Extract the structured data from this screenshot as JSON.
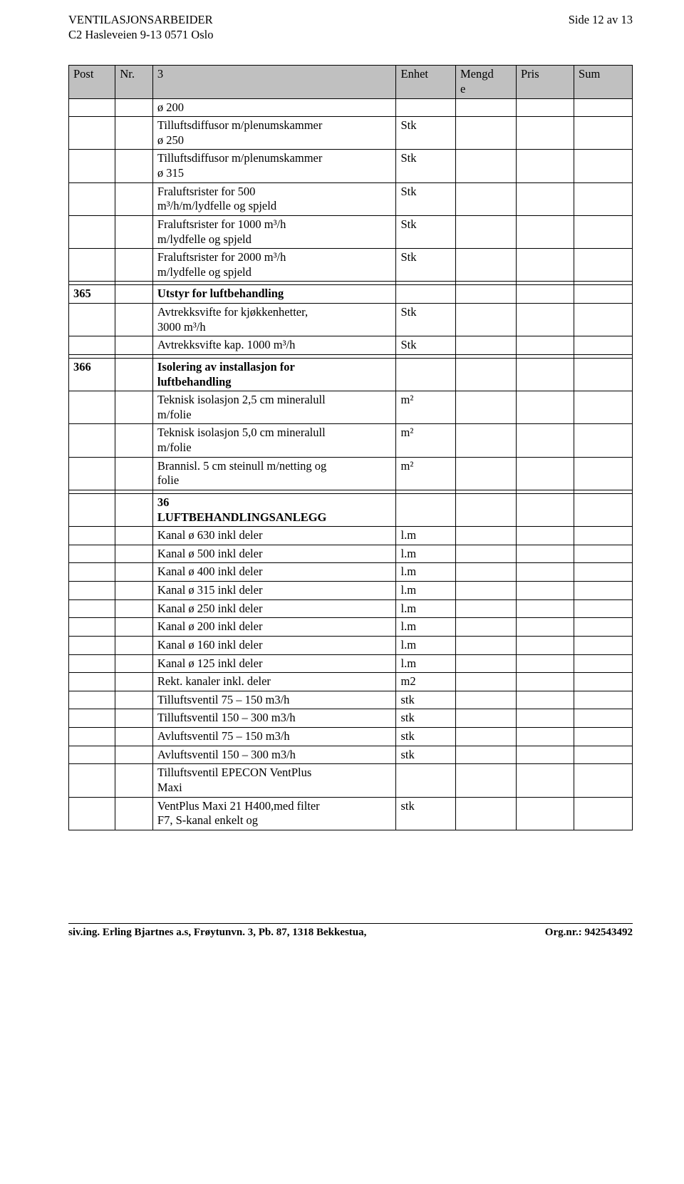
{
  "page_number_label": "Side 12 av 13",
  "doc_title_1": "VENTILASJONSARBEIDER",
  "doc_title_2": "C2 Hasleveien 9-13 0571 Oslo",
  "headers": {
    "post": "Post",
    "nr": "Nr.",
    "desc": "3",
    "enh": "Enhet",
    "m": "Mengd\ne",
    "pris": "Pris",
    "sum": "Sum"
  },
  "rows": [
    {
      "post": "",
      "nr": "",
      "desc": "ø 200",
      "enh": "",
      "m": "",
      "pris": "",
      "sum": ""
    },
    {
      "post": "",
      "nr": "",
      "desc": "Tilluftsdiffusor m/plenumskammer\nø 250",
      "enh": "Stk",
      "m": "",
      "pris": "",
      "sum": ""
    },
    {
      "post": "",
      "nr": "",
      "desc": "Tilluftsdiffusor m/plenumskammer\nø 315",
      "enh": "Stk",
      "m": "",
      "pris": "",
      "sum": ""
    },
    {
      "post": "",
      "nr": "",
      "desc": "Fraluftsrister for 500\nm³/h/m/lydfelle og spjeld",
      "enh": "Stk",
      "m": "",
      "pris": "",
      "sum": ""
    },
    {
      "post": "",
      "nr": "",
      "desc": "Fraluftsrister for 1000 m³/h\nm/lydfelle og spjeld",
      "enh": "Stk",
      "m": "",
      "pris": "",
      "sum": ""
    },
    {
      "post": "",
      "nr": "",
      "desc": "Fraluftsrister for 2000 m³/h\nm/lydfelle og spjeld",
      "enh": "Stk",
      "m": "",
      "pris": "",
      "sum": ""
    },
    {
      "post": "",
      "nr": "",
      "desc": "",
      "enh": "",
      "m": "",
      "pris": "",
      "sum": ""
    },
    {
      "post": "365",
      "nr": "",
      "desc": "Utstyr for luftbehandling",
      "enh": "",
      "m": "",
      "pris": "",
      "sum": "",
      "bold": true
    },
    {
      "post": "",
      "nr": "",
      "desc": "Avtrekksvifte for kjøkkenhetter,\n3000 m³/h",
      "enh": "Stk",
      "m": "",
      "pris": "",
      "sum": ""
    },
    {
      "post": "",
      "nr": "",
      "desc": "Avtrekksvifte kap. 1000 m³/h",
      "enh": "Stk",
      "m": "",
      "pris": "",
      "sum": ""
    },
    {
      "post": "",
      "nr": "",
      "desc": "",
      "enh": "",
      "m": "",
      "pris": "",
      "sum": ""
    },
    {
      "post": "366",
      "nr": "",
      "desc": "Isolering av installasjon for\nluftbehandling",
      "enh": "",
      "m": "",
      "pris": "",
      "sum": "",
      "bold": true
    },
    {
      "post": "",
      "nr": "",
      "desc": "Teknisk isolasjon 2,5 cm mineralull\nm/folie",
      "enh": "m²",
      "m": "",
      "pris": "",
      "sum": ""
    },
    {
      "post": "",
      "nr": "",
      "desc": "Teknisk isolasjon 5,0 cm mineralull\nm/folie",
      "enh": "m²",
      "m": "",
      "pris": "",
      "sum": ""
    },
    {
      "post": "",
      "nr": "",
      "desc": "Brannisl. 5 cm steinull m/netting og\nfolie",
      "enh": "m²",
      "m": "",
      "pris": "",
      "sum": ""
    },
    {
      "post": "",
      "nr": "",
      "desc": "",
      "enh": "",
      "m": "",
      "pris": "",
      "sum": ""
    },
    {
      "post": "",
      "nr": "",
      "desc": "36\nLUFTBEHANDLINGSANLEGG",
      "enh": "",
      "m": "",
      "pris": "",
      "sum": "",
      "bold": true
    },
    {
      "post": "",
      "nr": "",
      "desc": "Kanal ø 630 inkl deler",
      "enh": "l.m",
      "m": "",
      "pris": "",
      "sum": ""
    },
    {
      "post": "",
      "nr": "",
      "desc": "Kanal ø 500 inkl deler",
      "enh": "l.m",
      "m": "",
      "pris": "",
      "sum": ""
    },
    {
      "post": "",
      "nr": "",
      "desc": "Kanal ø 400 inkl deler",
      "enh": "l.m",
      "m": "",
      "pris": "",
      "sum": ""
    },
    {
      "post": "",
      "nr": "",
      "desc": "Kanal ø 315 inkl deler",
      "enh": "l.m",
      "m": "",
      "pris": "",
      "sum": ""
    },
    {
      "post": "",
      "nr": "",
      "desc": "Kanal ø 250 inkl deler",
      "enh": "l.m",
      "m": "",
      "pris": "",
      "sum": ""
    },
    {
      "post": "",
      "nr": "",
      "desc": "Kanal ø 200 inkl deler",
      "enh": "l.m",
      "m": "",
      "pris": "",
      "sum": ""
    },
    {
      "post": "",
      "nr": "",
      "desc": "Kanal ø 160 inkl deler",
      "enh": "l.m",
      "m": "",
      "pris": "",
      "sum": ""
    },
    {
      "post": "",
      "nr": "",
      "desc": "Kanal ø 125 inkl deler",
      "enh": "l.m",
      "m": "",
      "pris": "",
      "sum": ""
    },
    {
      "post": "",
      "nr": "",
      "desc": "Rekt. kanaler inkl. deler",
      "enh": "m2",
      "m": "",
      "pris": "",
      "sum": ""
    },
    {
      "post": "",
      "nr": "",
      "desc": "Tilluftsventil 75 – 150 m3/h",
      "enh": "stk",
      "m": "",
      "pris": "",
      "sum": ""
    },
    {
      "post": "",
      "nr": "",
      "desc": "Tilluftsventil 150 – 300 m3/h",
      "enh": "stk",
      "m": "",
      "pris": "",
      "sum": ""
    },
    {
      "post": "",
      "nr": "",
      "desc": "Avluftsventil 75 – 150 m3/h",
      "enh": "stk",
      "m": "",
      "pris": "",
      "sum": ""
    },
    {
      "post": "",
      "nr": "",
      "desc": "Avluftsventil 150 – 300 m3/h",
      "enh": "stk",
      "m": "",
      "pris": "",
      "sum": ""
    },
    {
      "post": "",
      "nr": "",
      "desc": "Tilluftsventil EPECON VentPlus\nMaxi",
      "enh": "",
      "m": "",
      "pris": "",
      "sum": ""
    },
    {
      "post": "",
      "nr": "",
      "desc": "VentPlus Maxi 21 H400,med filter\nF7, S-kanal enkelt og",
      "enh": "stk",
      "m": "",
      "pris": "",
      "sum": ""
    }
  ],
  "footer_left": "siv.ing. Erling Bjartnes a.s, Frøytunvn. 3, Pb. 87, 1318 Bekkestua,",
  "footer_right": "Org.nr.: 942543492"
}
